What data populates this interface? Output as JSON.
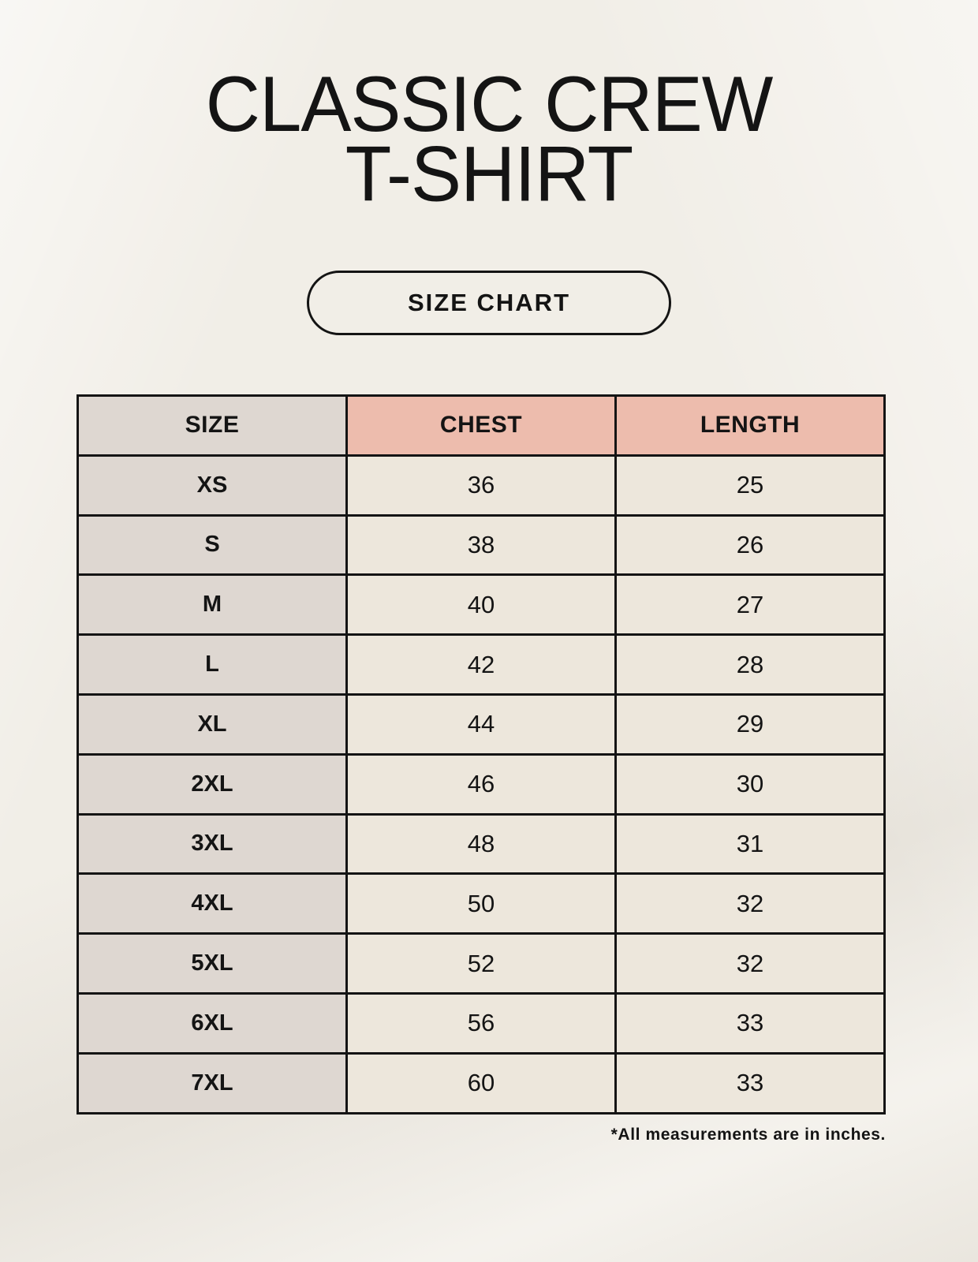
{
  "header": {
    "title_line1": "CLASSIC CREW",
    "title_line2": "T-SHIRT",
    "badge_label": "SIZE CHART"
  },
  "size_table": {
    "columns": [
      "SIZE",
      "CHEST",
      "LENGTH"
    ],
    "rows": [
      [
        "XS",
        "36",
        "25"
      ],
      [
        "S",
        "38",
        "26"
      ],
      [
        "M",
        "40",
        "27"
      ],
      [
        "L",
        "42",
        "28"
      ],
      [
        "XL",
        "44",
        "29"
      ],
      [
        "2XL",
        "46",
        "30"
      ],
      [
        "3XL",
        "48",
        "31"
      ],
      [
        "4XL",
        "50",
        "32"
      ],
      [
        "5XL",
        "52",
        "32"
      ],
      [
        "6XL",
        "56",
        "33"
      ],
      [
        "7XL",
        "60",
        "33"
      ]
    ],
    "units_note": "*All measurements are in inches."
  },
  "colors": {
    "background": "#f1eee7",
    "size_column_bg": "#ded7d1",
    "header_accent_bg": "#edbcad",
    "cell_bg": "#ede7dc",
    "border": "#141414",
    "text": "#141414"
  }
}
